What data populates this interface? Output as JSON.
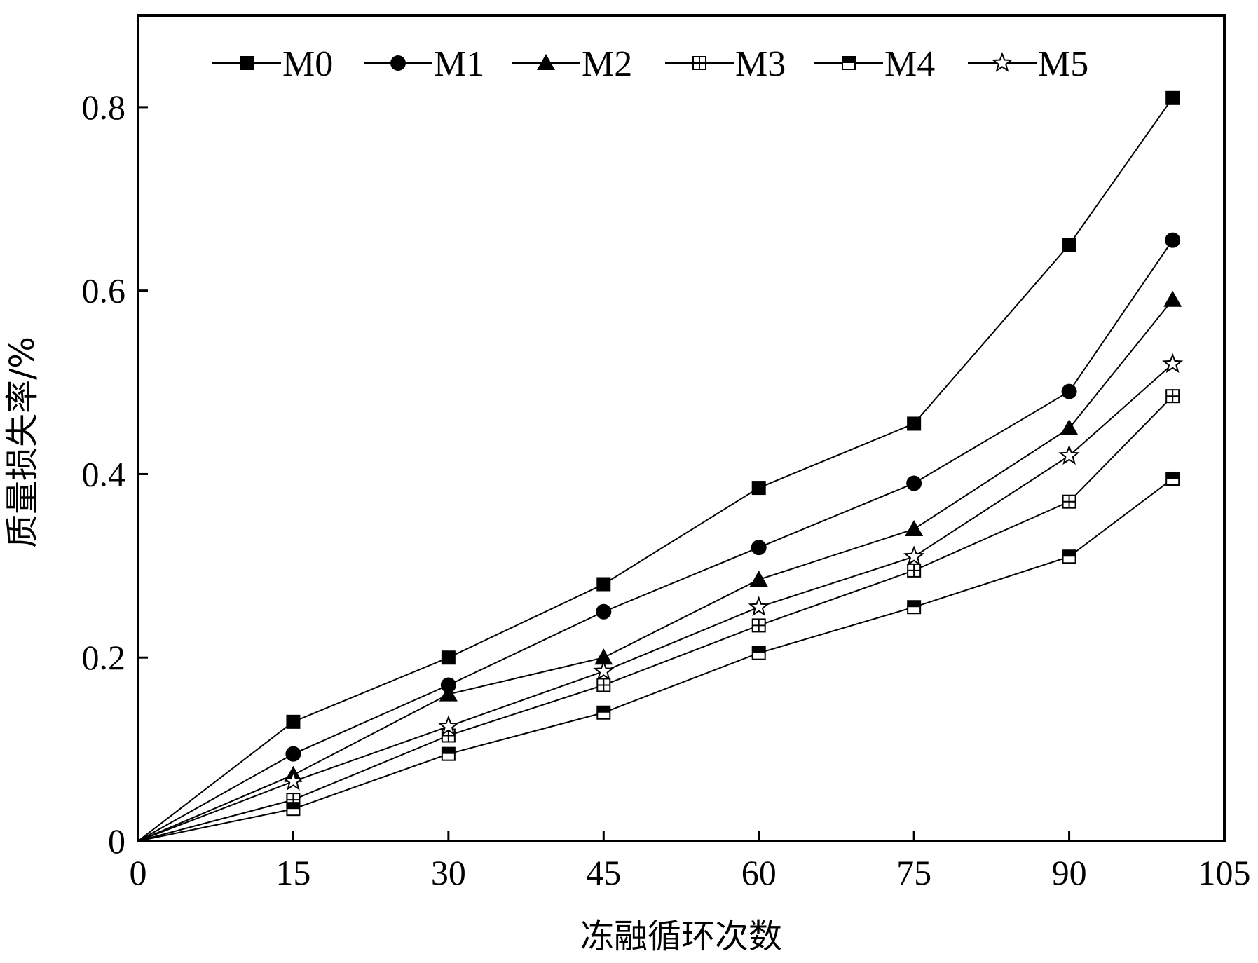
{
  "chart_data": {
    "type": "line",
    "title": "",
    "xlabel": "冻融循环次数",
    "ylabel": "质量损失率/%",
    "xlim": [
      0,
      105
    ],
    "ylim": [
      0,
      0.9
    ],
    "x_ticks": [
      0,
      15,
      30,
      45,
      60,
      75,
      90,
      105
    ],
    "x_tick_labels": [
      "0",
      "15",
      "30",
      "45",
      "60",
      "75",
      "90",
      "105"
    ],
    "y_ticks": [
      0,
      0.2,
      0.4,
      0.6,
      0.8
    ],
    "y_tick_labels": [
      "0",
      "0.2",
      "0.4",
      "0.6",
      "0.8"
    ],
    "grid": false,
    "legend_position": "top",
    "x": [
      0,
      15,
      30,
      45,
      60,
      75,
      90,
      100
    ],
    "series": [
      {
        "name": "M0",
        "marker": "square-filled",
        "values": [
          0,
          0.13,
          0.2,
          0.28,
          0.385,
          0.455,
          0.65,
          0.81
        ]
      },
      {
        "name": "M1",
        "marker": "circle-filled",
        "values": [
          0,
          0.095,
          0.17,
          0.25,
          0.32,
          0.39,
          0.49,
          0.655
        ]
      },
      {
        "name": "M2",
        "marker": "triangle-filled",
        "values": [
          0,
          0.072,
          0.16,
          0.2,
          0.285,
          0.34,
          0.45,
          0.59
        ]
      },
      {
        "name": "M3",
        "marker": "square-crossed",
        "values": [
          0,
          0.045,
          0.115,
          0.17,
          0.235,
          0.295,
          0.37,
          0.485
        ]
      },
      {
        "name": "M4",
        "marker": "square-half",
        "values": [
          0,
          0.035,
          0.095,
          0.14,
          0.205,
          0.255,
          0.31,
          0.395
        ]
      },
      {
        "name": "M5",
        "marker": "star-open",
        "values": [
          0,
          0.065,
          0.125,
          0.185,
          0.255,
          0.31,
          0.42,
          0.52
        ]
      }
    ],
    "line_color": "#000000"
  }
}
